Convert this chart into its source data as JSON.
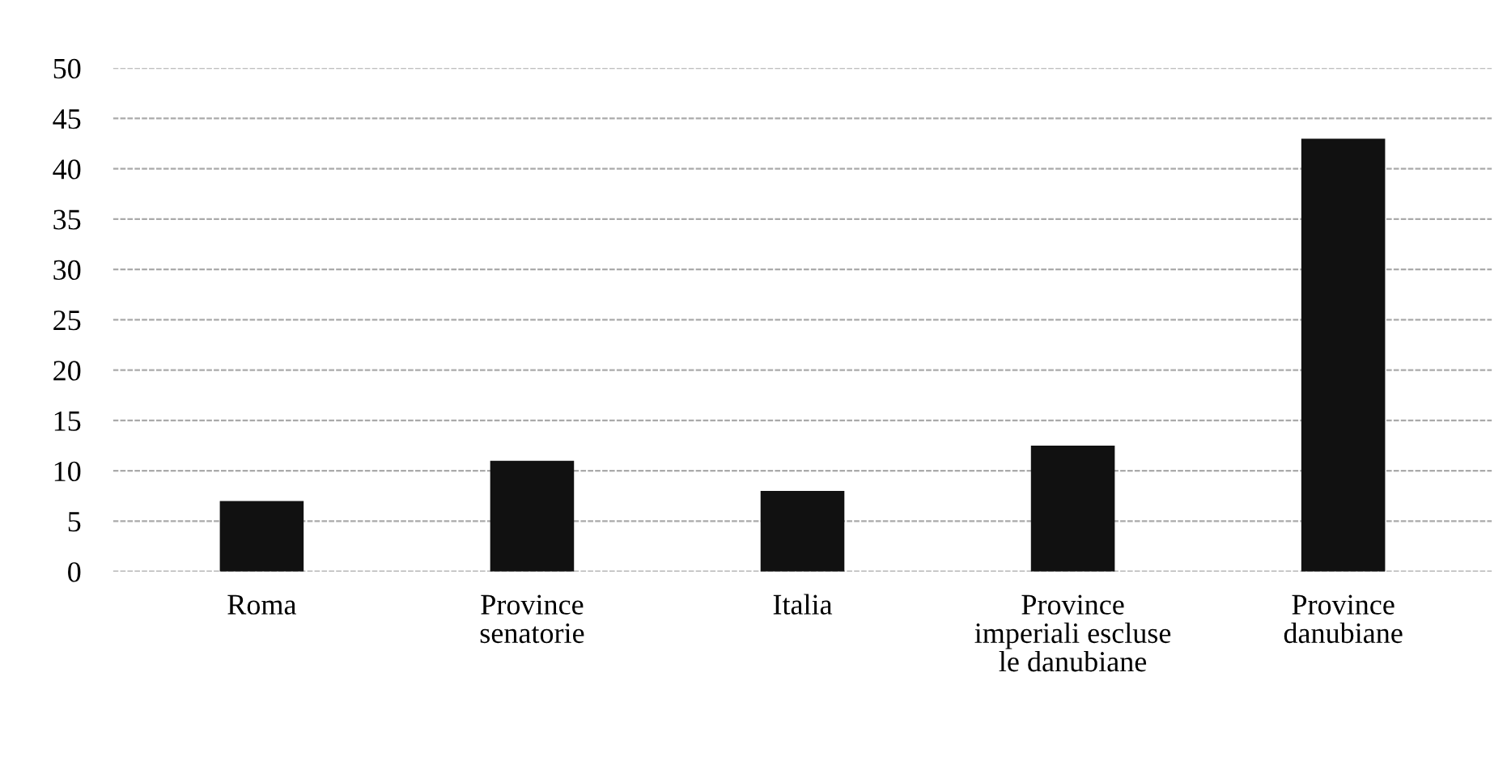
{
  "chart_data": {
    "type": "bar",
    "categories": [
      "Roma",
      "Province senatorie",
      "Italia",
      "Province imperiali escluse le danubiane",
      "Province danubiane"
    ],
    "values": [
      7,
      11,
      8,
      12.5,
      43
    ],
    "color": "#111111",
    "ylim": [
      0,
      50
    ],
    "yticks": [
      0,
      5,
      10,
      15,
      20,
      25,
      30,
      35,
      40,
      45,
      50
    ],
    "grid": "y"
  }
}
